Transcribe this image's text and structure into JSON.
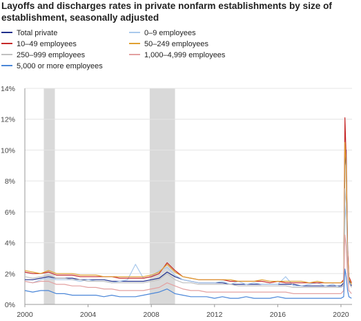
{
  "title": "Layoffs and discharges rates in private nonfarm establishments by size of establishment, seasonally adjusted",
  "chart_data": {
    "type": "line",
    "title": "Layoffs and discharges rates in private nonfarm establishments by size of establishment, seasonally adjusted",
    "xlabel": "",
    "ylabel": "",
    "xlim": [
      2000,
      2020.7
    ],
    "ylim": [
      0,
      14
    ],
    "x_ticks": [
      "2000",
      "2004",
      "2008",
      "2012",
      "2016",
      "2020"
    ],
    "y_ticks": [
      "0%",
      "2%",
      "4%",
      "6%",
      "8%",
      "10%",
      "12%",
      "14%"
    ],
    "grid": "horizontal",
    "legend_position": "top",
    "recessions": [
      [
        2001.2,
        2001.9
      ],
      [
        2007.9,
        2009.5
      ]
    ],
    "x": [
      2000.0,
      2000.5,
      2001.0,
      2001.5,
      2002.0,
      2002.5,
      2003.0,
      2003.5,
      2004.0,
      2004.5,
      2005.0,
      2005.5,
      2006.0,
      2006.5,
      2007.0,
      2007.5,
      2008.0,
      2008.5,
      2009.0,
      2009.5,
      2010.0,
      2010.5,
      2011.0,
      2011.5,
      2012.0,
      2012.5,
      2013.0,
      2013.5,
      2014.0,
      2014.5,
      2015.0,
      2015.5,
      2016.0,
      2016.5,
      2017.0,
      2017.5,
      2018.0,
      2018.5,
      2019.0,
      2019.5,
      2020.0,
      2020.17,
      2020.25,
      2020.33,
      2020.42,
      2020.5,
      2020.67
    ],
    "series": [
      {
        "name": "Total private",
        "color": "#1f2f8c",
        "values": [
          1.6,
          1.6,
          1.7,
          1.8,
          1.7,
          1.7,
          1.7,
          1.6,
          1.6,
          1.6,
          1.6,
          1.5,
          1.5,
          1.5,
          1.5,
          1.5,
          1.6,
          1.7,
          2.1,
          1.8,
          1.6,
          1.5,
          1.4,
          1.4,
          1.4,
          1.4,
          1.3,
          1.3,
          1.3,
          1.3,
          1.3,
          1.3,
          1.3,
          1.3,
          1.3,
          1.2,
          1.2,
          1.2,
          1.2,
          1.2,
          1.2,
          1.4,
          9.0,
          10.0,
          3.5,
          1.6,
          1.2
        ]
      },
      {
        "name": "0–9 employees",
        "color": "#a9c9ec",
        "values": [
          1.5,
          1.4,
          1.6,
          1.7,
          1.6,
          1.6,
          1.6,
          1.5,
          1.6,
          1.5,
          1.5,
          1.4,
          1.5,
          1.6,
          2.6,
          1.7,
          1.8,
          2.2,
          2.4,
          1.9,
          1.6,
          1.5,
          1.4,
          1.4,
          1.4,
          1.5,
          1.3,
          1.5,
          1.3,
          1.4,
          1.3,
          1.3,
          1.3,
          1.8,
          1.2,
          1.2,
          1.3,
          1.4,
          1.2,
          1.3,
          1.1,
          1.2,
          5.5,
          6.5,
          2.8,
          1.4,
          1.3
        ]
      },
      {
        "name": "10–49 employees",
        "color": "#c62828",
        "values": [
          2.1,
          2.0,
          2.0,
          2.1,
          1.9,
          1.9,
          1.9,
          1.8,
          1.8,
          1.8,
          1.8,
          1.8,
          1.7,
          1.7,
          1.7,
          1.7,
          1.8,
          2.0,
          2.7,
          2.2,
          1.8,
          1.7,
          1.6,
          1.6,
          1.6,
          1.6,
          1.5,
          1.5,
          1.5,
          1.5,
          1.5,
          1.4,
          1.5,
          1.4,
          1.4,
          1.4,
          1.4,
          1.4,
          1.4,
          1.4,
          1.4,
          1.6,
          12.1,
          9.5,
          3.5,
          1.8,
          1.4
        ]
      },
      {
        "name": "50–249 employees",
        "color": "#e0a030",
        "values": [
          2.2,
          2.1,
          2.0,
          2.2,
          2.0,
          2.0,
          2.0,
          1.9,
          1.9,
          1.9,
          1.8,
          1.8,
          1.8,
          1.8,
          1.8,
          1.8,
          1.9,
          2.1,
          2.6,
          2.1,
          1.8,
          1.7,
          1.6,
          1.6,
          1.6,
          1.6,
          1.6,
          1.5,
          1.5,
          1.5,
          1.6,
          1.5,
          1.5,
          1.5,
          1.5,
          1.5,
          1.4,
          1.5,
          1.4,
          1.4,
          1.4,
          1.5,
          10.5,
          9.0,
          3.0,
          1.7,
          1.3
        ]
      },
      {
        "name": "250–999 employees",
        "color": "#c0c0c0",
        "values": [
          1.8,
          1.7,
          1.8,
          1.9,
          1.7,
          1.7,
          1.6,
          1.6,
          1.5,
          1.5,
          1.5,
          1.4,
          1.4,
          1.4,
          1.4,
          1.4,
          1.5,
          1.6,
          2.0,
          1.6,
          1.4,
          1.4,
          1.3,
          1.3,
          1.3,
          1.3,
          1.3,
          1.2,
          1.2,
          1.2,
          1.2,
          1.2,
          1.2,
          1.2,
          1.1,
          1.1,
          1.1,
          1.1,
          1.1,
          1.1,
          1.1,
          1.3,
          7.5,
          6.5,
          2.5,
          1.4,
          1.1
        ]
      },
      {
        "name": "1,000–4,999 employees",
        "color": "#e3a0a0",
        "values": [
          1.5,
          1.4,
          1.5,
          1.5,
          1.3,
          1.3,
          1.2,
          1.2,
          1.1,
          1.1,
          1.0,
          1.0,
          0.9,
          0.9,
          0.9,
          0.9,
          1.0,
          1.1,
          1.4,
          1.2,
          1.0,
          0.9,
          0.9,
          0.8,
          0.8,
          0.8,
          0.8,
          0.8,
          0.8,
          0.8,
          0.8,
          0.8,
          0.8,
          0.8,
          0.7,
          0.7,
          0.7,
          0.7,
          0.7,
          0.7,
          0.7,
          0.9,
          4.5,
          3.8,
          1.8,
          0.9,
          0.7
        ]
      },
      {
        "name": "5,000 or more employees",
        "color": "#4a86d8",
        "values": [
          0.9,
          0.8,
          0.9,
          0.9,
          0.7,
          0.7,
          0.6,
          0.6,
          0.6,
          0.6,
          0.5,
          0.6,
          0.5,
          0.5,
          0.5,
          0.6,
          0.7,
          0.8,
          1.0,
          0.7,
          0.6,
          0.5,
          0.5,
          0.5,
          0.4,
          0.5,
          0.4,
          0.4,
          0.5,
          0.4,
          0.4,
          0.4,
          0.5,
          0.4,
          0.4,
          0.4,
          0.4,
          0.4,
          0.4,
          0.4,
          0.4,
          0.5,
          2.3,
          1.8,
          0.9,
          0.5,
          0.4
        ]
      }
    ]
  }
}
